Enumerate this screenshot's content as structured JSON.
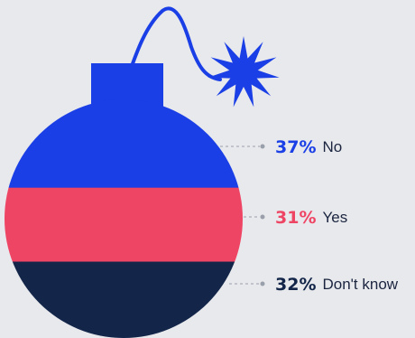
{
  "colors": {
    "background": "#e8e9ec",
    "no": "#1a3fe6",
    "yes": "#ef4565",
    "dont_know": "#13264a",
    "connector": "#9aa0ab"
  },
  "chart_data": {
    "type": "bar",
    "style": "stacked segments inside a bomb illustration",
    "categories": [
      "No",
      "Yes",
      "Don't know"
    ],
    "values": [
      37,
      31,
      32
    ],
    "labels": [
      "37%",
      "31%",
      "32%"
    ],
    "unit": "%",
    "legend": "right"
  }
}
